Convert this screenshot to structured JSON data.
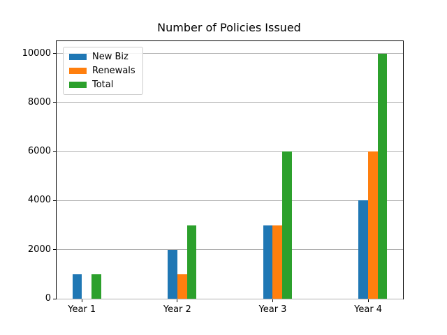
{
  "chart_data": {
    "type": "bar",
    "title": "Number of Policies Issued",
    "categories": [
      "Year 1",
      "Year 2",
      "Year 3",
      "Year 4"
    ],
    "x": [
      0,
      1,
      2,
      3
    ],
    "series": [
      {
        "name": "New Biz",
        "color": "#1f77b4",
        "offset": -0.05,
        "values": [
          1000,
          2000,
          3000,
          4000
        ]
      },
      {
        "name": "Renewals",
        "color": "#ff7f0e",
        "offset": 0.05,
        "values": [
          0,
          1000,
          3000,
          6000
        ]
      },
      {
        "name": "Total",
        "color": "#2ca02c",
        "offset": 0.15,
        "values": [
          1000,
          3000,
          6000,
          10000
        ]
      }
    ],
    "bar_width": 0.1,
    "xlim": [
      -0.265,
      3.365
    ],
    "ylim": [
      0,
      10500
    ],
    "yticks": [
      0,
      2000,
      4000,
      6000,
      8000,
      10000
    ],
    "xlabel": "",
    "ylabel": "",
    "grid": "y",
    "grid_color": "#b0b0b0",
    "axis_color": "#000000",
    "legend": {
      "position": "upper left",
      "entries": [
        "New Biz",
        "Renewals",
        "Total"
      ]
    }
  }
}
